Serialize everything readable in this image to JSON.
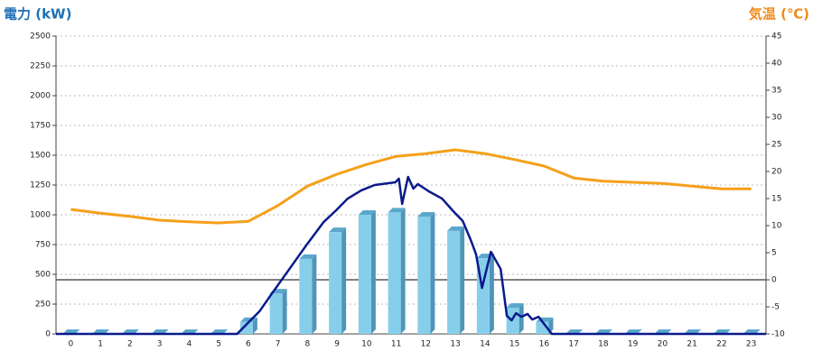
{
  "chart_data": {
    "type": "combo",
    "ylabel": "電力 (kW)",
    "y2label": "気温 (℃)",
    "ylabel_color": "#1f6fb5",
    "y2label_color": "#f08a1c",
    "categories": [
      "0",
      "1",
      "2",
      "3",
      "4",
      "5",
      "6",
      "7",
      "8",
      "9",
      "10",
      "11",
      "12",
      "13",
      "14",
      "15",
      "16",
      "17",
      "18",
      "19",
      "20",
      "21",
      "22",
      "23"
    ],
    "xlim": [
      -0.5,
      23.5
    ],
    "ylim": [
      0,
      2500
    ],
    "yticks": [
      0,
      250,
      500,
      750,
      1000,
      1250,
      1500,
      1750,
      2000,
      2250,
      2500
    ],
    "y2lim": [
      -10,
      45
    ],
    "y2ticks": [
      -10,
      -5,
      0,
      5,
      10,
      15,
      20,
      25,
      30,
      35,
      40,
      45
    ],
    "grid": true,
    "y2_zero_line": true,
    "series": [
      {
        "type": "bar",
        "color": "#87ceeb",
        "values": [
          0,
          0,
          0,
          0,
          0,
          0,
          100,
          340,
          630,
          855,
          1000,
          1020,
          985,
          865,
          635,
          220,
          100,
          0,
          0,
          0,
          0,
          0,
          0,
          0
        ]
      },
      {
        "type": "line",
        "color": "#0a1a8c",
        "x": [
          -0.5,
          5.62,
          6.38,
          6.78,
          7.39,
          8.0,
          8.55,
          8.97,
          9.36,
          9.82,
          10.27,
          10.97,
          11.09,
          11.2,
          11.4,
          11.58,
          11.73,
          12.1,
          12.55,
          12.9,
          13.25,
          13.52,
          13.7,
          13.9,
          14.2,
          14.53,
          14.74,
          14.9,
          15.05,
          15.23,
          15.44,
          15.6,
          15.81,
          16.26,
          23.5
        ],
        "values": [
          0,
          0,
          190,
          333,
          545,
          758,
          940,
          1038,
          1136,
          1205,
          1250,
          1273,
          1303,
          1091,
          1318,
          1220,
          1258,
          1197,
          1136,
          1038,
          947,
          788,
          667,
          386,
          689,
          545,
          152,
          114,
          174,
          144,
          167,
          121,
          144,
          0,
          0
        ]
      },
      {
        "type": "line",
        "axis": "y2",
        "color": "#f5a01a",
        "values": [
          13.0,
          12.3,
          11.7,
          11.0,
          10.7,
          10.5,
          10.8,
          13.7,
          17.3,
          19.5,
          21.3,
          22.8,
          23.3,
          24.0,
          23.3,
          22.2,
          21.0,
          18.8,
          18.2,
          18.0,
          17.8,
          17.3,
          16.8,
          16.8
        ]
      }
    ]
  }
}
